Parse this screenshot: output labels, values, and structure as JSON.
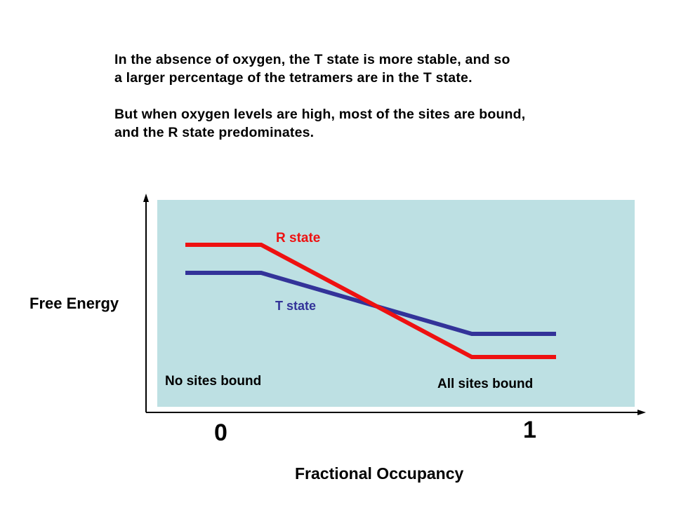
{
  "caption": {
    "paragraph1_line1": "In the absence of oxygen, the T state is more stable, and so",
    "paragraph1_line2": "a larger percentage of the tetramers are in the T state.",
    "paragraph2_line1": "But when oxygen levels are high, most of the sites are bound,",
    "paragraph2_line2": "and the R state predominates."
  },
  "axes": {
    "y_label": "Free Energy",
    "x_label": "Fractional Occupancy",
    "x_tick_start": "0",
    "x_tick_end": "1"
  },
  "curves": {
    "r_state": {
      "label": "R state",
      "color": "#ee1111"
    },
    "t_state": {
      "label": "T state",
      "color": "#333399"
    }
  },
  "annotations": {
    "left": "No sites bound",
    "right": "All sites bound"
  },
  "colors": {
    "panel_background": "#bde0e3",
    "axis": "#000000"
  }
}
